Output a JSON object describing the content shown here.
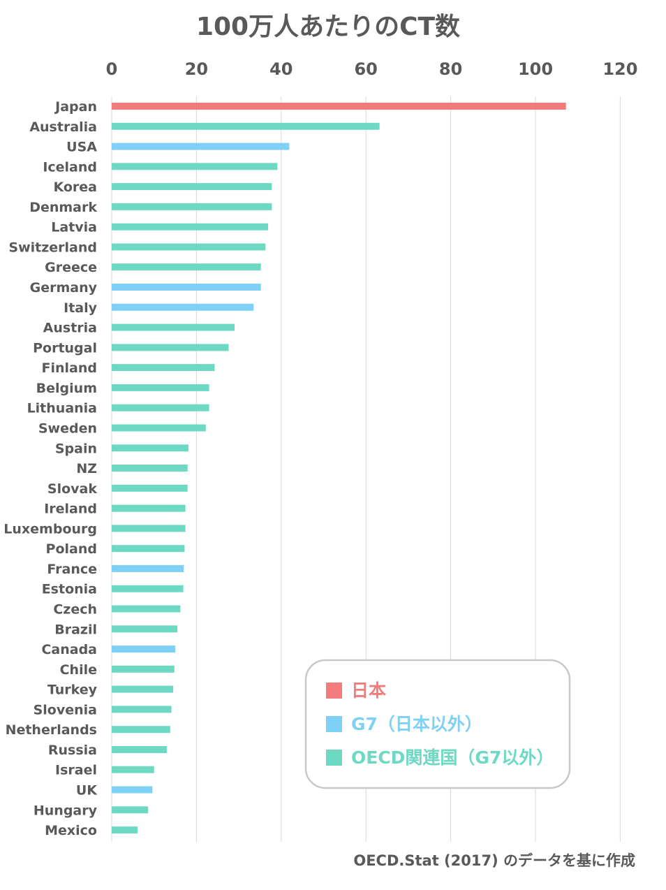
{
  "chart_data": {
    "type": "bar",
    "orientation": "horizontal",
    "title": "100万人あたりのCT数",
    "source": "OECD.Stat (2017) のデータを基に作成",
    "xlim": [
      0,
      120
    ],
    "ticks": [
      "0",
      "20",
      "40",
      "60",
      "80",
      "100",
      "120"
    ],
    "tick_values": [
      0,
      20,
      40,
      60,
      80,
      100,
      120
    ],
    "grid": true,
    "legend_position": "bottom-right",
    "legend": [
      {
        "label": "日本",
        "color": "#f47b7b"
      },
      {
        "label": "G7（日本以外）",
        "color": "#7fd0f7"
      },
      {
        "label": "OECD関連国（G7以外）",
        "color": "#6dd9c3"
      }
    ],
    "categories": [
      "Japan",
      "Australia",
      "USA",
      "Iceland",
      "Korea",
      "Denmark",
      "Latvia",
      "Switzerland",
      "Greece",
      "Germany",
      "Italy",
      "Austria",
      "Portugal",
      "Finland",
      "Belgium",
      "Lithuania",
      "Sweden",
      "Spain",
      "NZ",
      "Slovak",
      "Ireland",
      "Luxembourg",
      "Poland",
      "France",
      "Estonia",
      "Czech",
      "Brazil",
      "Canada",
      "Chile",
      "Turkey",
      "Slovenia",
      "Netherlands",
      "Russia",
      "Israel",
      "UK",
      "Hungary",
      "Mexico"
    ],
    "values": [
      107.2,
      63.2,
      41.9,
      39.1,
      37.8,
      37.8,
      36.9,
      36.3,
      35.2,
      35.2,
      33.5,
      29,
      27.6,
      24.3,
      23,
      23,
      22.2,
      18.1,
      17.9,
      17.9,
      17.4,
      17.4,
      17.2,
      17,
      16.9,
      16.2,
      15.5,
      15,
      14.8,
      14.5,
      14.1,
      13.8,
      13,
      10,
      9.6,
      8.6,
      6.1
    ],
    "groups": [
      0,
      2,
      1,
      2,
      2,
      2,
      2,
      2,
      2,
      1,
      1,
      2,
      2,
      2,
      2,
      2,
      2,
      2,
      2,
      2,
      2,
      2,
      2,
      1,
      2,
      2,
      2,
      1,
      2,
      2,
      2,
      2,
      2,
      2,
      1,
      2,
      2
    ]
  }
}
